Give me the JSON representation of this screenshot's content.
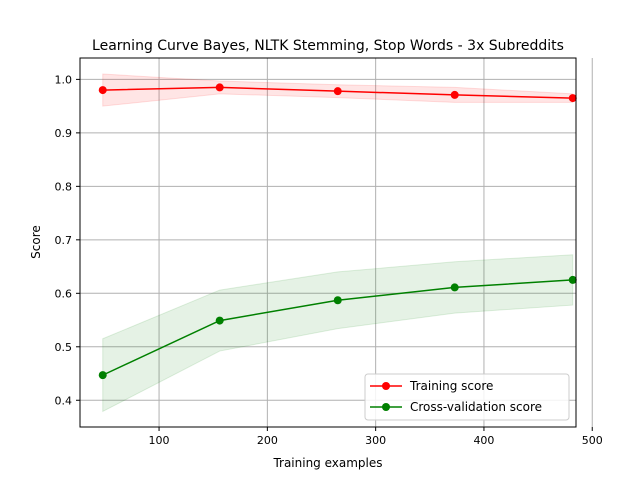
{
  "chart_data": {
    "type": "line",
    "title": "Learning Curve  Bayes, NLTK Stemming, Stop Words - 3x Subreddits",
    "xlabel": "Training examples",
    "ylabel": "Score",
    "xlim": [
      27,
      485
    ],
    "ylim": [
      0.35,
      1.04
    ],
    "xticks": [
      100,
      200,
      300,
      400,
      500
    ],
    "yticks": [
      0.4,
      0.5,
      0.6,
      0.7,
      0.8,
      0.9,
      1.0
    ],
    "xtick_labels": [
      "100",
      "200",
      "300",
      "400",
      "500"
    ],
    "ytick_labels": [
      "0.4",
      "0.5",
      "0.6",
      "0.7",
      "0.8",
      "0.9",
      "1.0"
    ],
    "grid": true,
    "legend_position": "bottom-right",
    "x": [
      48,
      156,
      265,
      373,
      482
    ],
    "series": [
      {
        "name": "Training score",
        "color": "#ff0000",
        "band_color": "#ff0000",
        "values": [
          0.98,
          0.985,
          0.978,
          0.971,
          0.965
        ],
        "upper": [
          1.01,
          0.997,
          0.99,
          0.985,
          0.973
        ],
        "lower": [
          0.95,
          0.973,
          0.966,
          0.957,
          0.957
        ]
      },
      {
        "name": "Cross-validation score",
        "color": "#008000",
        "band_color": "#008000",
        "values": [
          0.447,
          0.549,
          0.587,
          0.611,
          0.625
        ],
        "upper": [
          0.515,
          0.606,
          0.64,
          0.659,
          0.672
        ],
        "lower": [
          0.379,
          0.492,
          0.534,
          0.563,
          0.578
        ]
      }
    ]
  }
}
